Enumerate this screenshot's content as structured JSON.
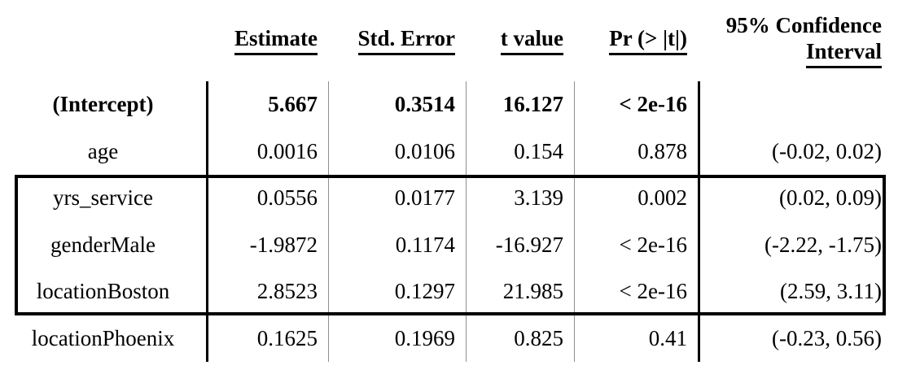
{
  "chart_data": {
    "type": "table",
    "title": "Regression coefficients table",
    "columns": {
      "row_label": "",
      "estimate": "Estimate",
      "std_error": "Std. Error",
      "t_value": "t value",
      "p_value": "Pr (> |t|)",
      "ci_line1": "95% Confidence",
      "ci_line2": "Interval"
    },
    "rows": [
      {
        "label": "(Intercept)",
        "estimate": "5.667",
        "std_error": "0.3514",
        "t_value": "16.127",
        "p_value": "< 2e-16",
        "ci": ""
      },
      {
        "label": "age",
        "estimate": "0.0016",
        "std_error": "0.0106",
        "t_value": "0.154",
        "p_value": "0.878",
        "ci": "(-0.02, 0.02)"
      },
      {
        "label": "yrs_service",
        "estimate": "0.0556",
        "std_error": "0.0177",
        "t_value": "3.139",
        "p_value": "0.002",
        "ci": "(0.02, 0.09)"
      },
      {
        "label": "genderMale",
        "estimate": "-1.9872",
        "std_error": "0.1174",
        "t_value": "-16.927",
        "p_value": "< 2e-16",
        "ci": "(-2.22, -1.75)"
      },
      {
        "label": "locationBoston",
        "estimate": "2.8523",
        "std_error": "0.1297",
        "t_value": "21.985",
        "p_value": "< 2e-16",
        "ci": "(2.59, 3.11)"
      },
      {
        "label": "locationPhoenix",
        "estimate": "0.1625",
        "std_error": "0.1969",
        "t_value": "0.825",
        "p_value": "0.41",
        "ci": "(-0.23, 0.56)"
      }
    ],
    "highlighted_rows": [
      "yrs_service",
      "genderMale",
      "locationBoston"
    ],
    "bold_rows": [
      "(Intercept)"
    ],
    "layout": {
      "grid": "off",
      "legend": "none",
      "thick_line_color": "#000000",
      "thin_line_color": "#8f8f8f",
      "background": "#ffffff",
      "text_color": "#000000"
    }
  }
}
